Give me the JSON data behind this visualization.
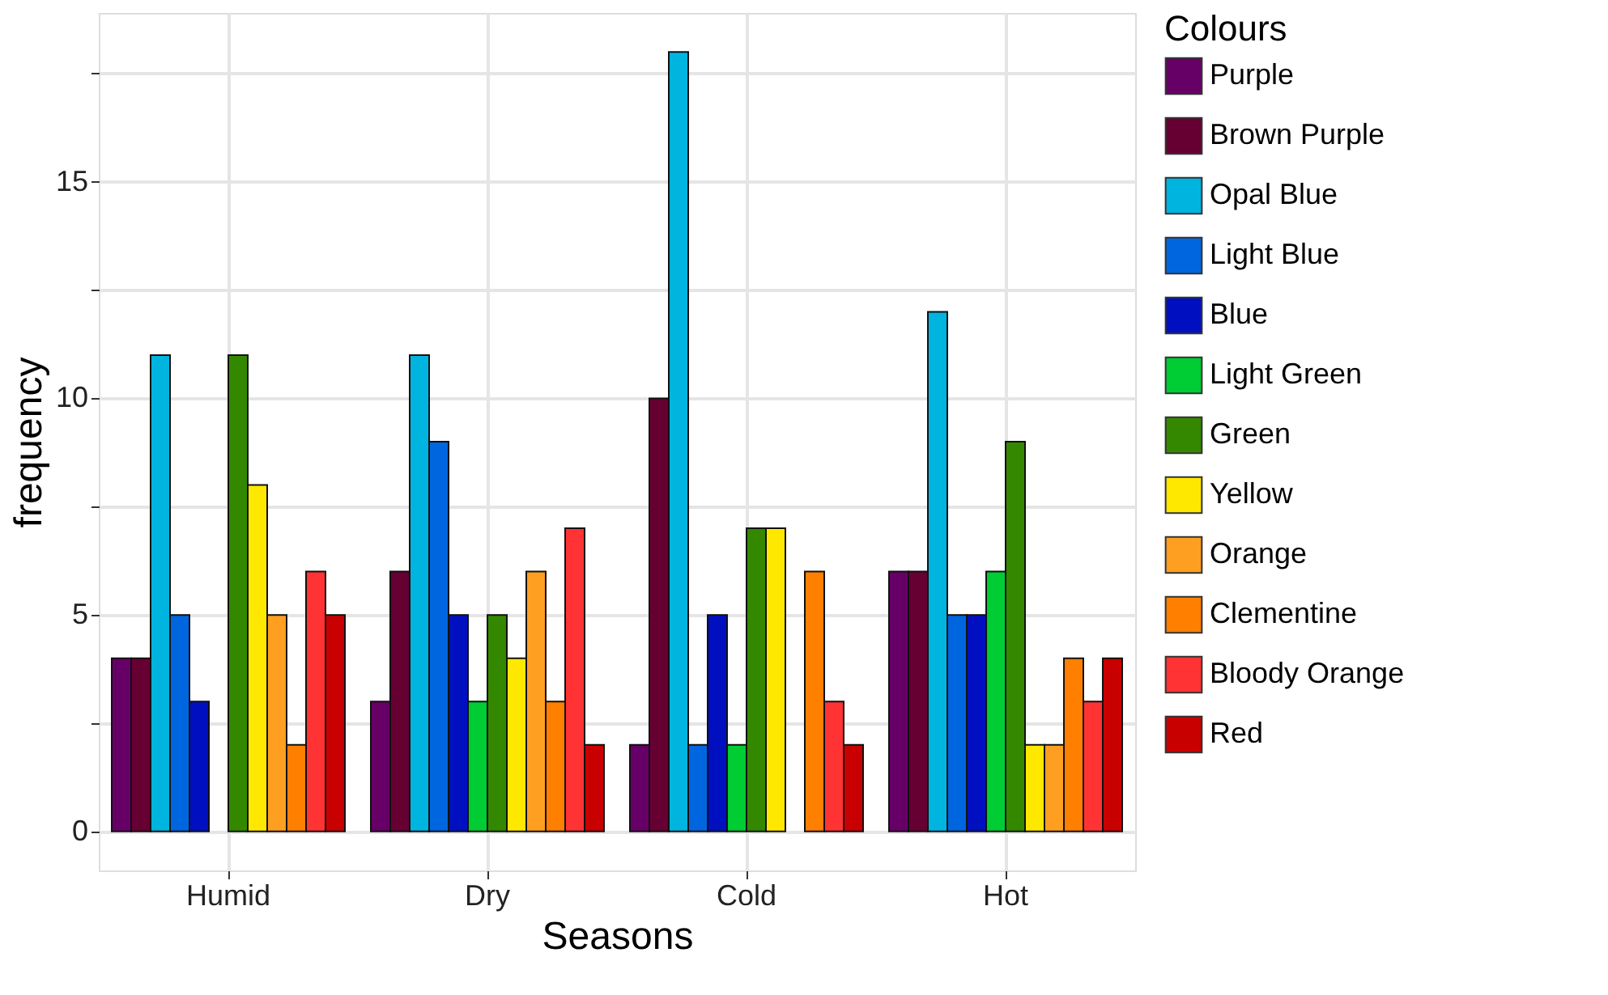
{
  "chart_data": {
    "type": "bar",
    "xlabel": "Seasons",
    "ylabel": "frequency",
    "legend_title": "Colours",
    "categories": [
      "Humid",
      "Dry",
      "Cold",
      "Hot"
    ],
    "series": [
      {
        "name": "Purple",
        "color": "#660066",
        "values": [
          4,
          3,
          2,
          6
        ]
      },
      {
        "name": "Brown Purple",
        "color": "#660033",
        "values": [
          4,
          6,
          10,
          6
        ]
      },
      {
        "name": "Opal Blue",
        "color": "#00b4e0",
        "values": [
          11,
          11,
          18,
          12
        ]
      },
      {
        "name": "Light Blue",
        "color": "#0066e0",
        "values": [
          5,
          9,
          2,
          5
        ]
      },
      {
        "name": "Blue",
        "color": "#0010c0",
        "values": [
          3,
          5,
          5,
          5
        ]
      },
      {
        "name": "Light Green",
        "color": "#00cc33",
        "values": [
          null,
          3,
          2,
          6
        ]
      },
      {
        "name": "Green",
        "color": "#338800",
        "values": [
          11,
          5,
          7,
          9
        ]
      },
      {
        "name": "Yellow",
        "color": "#ffe800",
        "values": [
          8,
          4,
          7,
          2
        ]
      },
      {
        "name": "Orange",
        "color": "#ff9f22",
        "values": [
          5,
          6,
          null,
          2
        ]
      },
      {
        "name": "Clementine",
        "color": "#ff7f00",
        "values": [
          2,
          3,
          6,
          4
        ]
      },
      {
        "name": "Bloody Orange",
        "color": "#ff3333",
        "values": [
          6,
          7,
          3,
          3
        ]
      },
      {
        "name": "Red",
        "color": "#c80000",
        "values": [
          5,
          2,
          2,
          4
        ]
      }
    ],
    "ylim": [
      -0.9,
      18.9
    ],
    "yticks": [
      0,
      {
        "value": 2.5,
        "label": null
      },
      5,
      {
        "value": 7.5,
        "label": null
      },
      10,
      {
        "value": 12.5,
        "label": null
      },
      15,
      {
        "value": 17.5,
        "label": null
      }
    ],
    "grid": true,
    "legend": "right"
  }
}
